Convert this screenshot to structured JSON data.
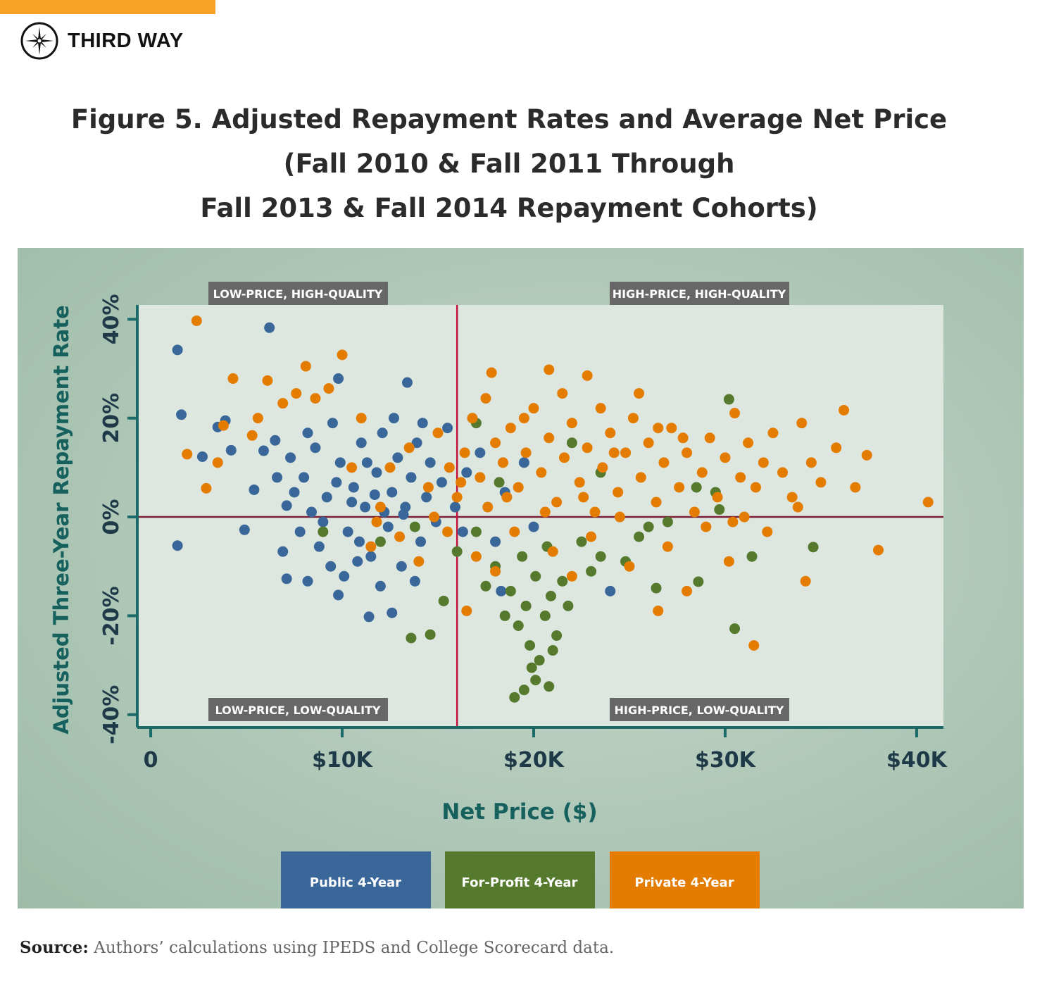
{
  "brand": {
    "name": "THIRD WAY",
    "accent": "#f7a226"
  },
  "title": [
    "Figure 5. Adjusted Repayment Rates and Average Net Price",
    "(Fall 2010 & Fall 2011 Through",
    "Fall 2013 & Fall 2014 Repayment Cohorts)"
  ],
  "source": {
    "label": "Source:",
    "text": " Authors’ calculations using IPEDS and College Scorecard data."
  },
  "chart_data": {
    "type": "scatter",
    "xlabel": "Net Price ($)",
    "ylabel": "Adjusted Three-Year Repayment Rate",
    "xlim": [
      -0.7,
      41.4
    ],
    "ylim": [
      -42.6,
      42.9
    ],
    "x_unit": "$K",
    "y_unit": "%",
    "xticks": [
      {
        "value": 0,
        "label": "0"
      },
      {
        "value": 10,
        "label": "$10K"
      },
      {
        "value": 20,
        "label": "$20K"
      },
      {
        "value": 30,
        "label": "$30K"
      },
      {
        "value": 40,
        "label": "$40K"
      }
    ],
    "yticks": [
      {
        "value": 40,
        "label": "40%"
      },
      {
        "value": 20,
        "label": "20%"
      },
      {
        "value": 0,
        "label": "0%"
      },
      {
        "value": -20,
        "label": "-20%"
      },
      {
        "value": -40,
        "label": "-40%"
      }
    ],
    "reference_lines": {
      "x": 16,
      "y": 0,
      "color": "#c0143c"
    },
    "quadrants": [
      "LOW-PRICE, HIGH-QUALITY",
      "HIGH-PRICE, HIGH-QUALITY",
      "LOW-PRICE, LOW-QUALITY",
      "HIGH-PRICE, LOW-QUALITY"
    ],
    "grid": false,
    "legend_position": "bottom",
    "series": [
      {
        "name": "Public 4-Year",
        "color": "#3a6799",
        "points": [
          [
            1.4,
            33.8
          ],
          [
            6.2,
            38.3
          ],
          [
            1.6,
            20.7
          ],
          [
            1.4,
            -5.8
          ],
          [
            4.9,
            -2.6
          ],
          [
            11.4,
            -20.2
          ],
          [
            12.6,
            -19.4
          ],
          [
            13.4,
            27.2
          ],
          [
            9.8,
            28
          ],
          [
            3.5,
            18.2
          ],
          [
            3.9,
            19.5
          ],
          [
            2.7,
            12.2
          ],
          [
            5.9,
            13.4
          ],
          [
            7.1,
            2.3
          ],
          [
            7.1,
            -12.5
          ],
          [
            8.2,
            -13
          ],
          [
            9.8,
            -15.8
          ],
          [
            4.2,
            13.5
          ],
          [
            5.4,
            5.5
          ],
          [
            6.6,
            8
          ],
          [
            7.3,
            12
          ],
          [
            8,
            8
          ],
          [
            8.6,
            14
          ],
          [
            9.2,
            4
          ],
          [
            9.5,
            19
          ],
          [
            9.9,
            11
          ],
          [
            10.3,
            -3
          ],
          [
            10.6,
            6
          ],
          [
            11,
            15
          ],
          [
            11.2,
            2
          ],
          [
            11.5,
            -8
          ],
          [
            11.8,
            9
          ],
          [
            12.1,
            17
          ],
          [
            12.4,
            -2
          ],
          [
            12.6,
            5
          ],
          [
            12.9,
            12
          ],
          [
            13.1,
            -10
          ],
          [
            13.3,
            2
          ],
          [
            13.6,
            8
          ],
          [
            13.9,
            15
          ],
          [
            14.1,
            -5
          ],
          [
            14.4,
            4
          ],
          [
            14.6,
            11
          ],
          [
            14.9,
            -1
          ],
          [
            15.2,
            7
          ],
          [
            15.5,
            18
          ],
          [
            8.8,
            -6
          ],
          [
            9.4,
            -10
          ],
          [
            10.1,
            -12
          ],
          [
            10.8,
            -9
          ],
          [
            7.8,
            -3
          ],
          [
            8.4,
            1
          ],
          [
            6.9,
            -7
          ],
          [
            12,
            -14
          ],
          [
            13.8,
            -13
          ],
          [
            15.9,
            2
          ],
          [
            16.5,
            9
          ],
          [
            17.2,
            13
          ],
          [
            18.5,
            5
          ],
          [
            19.5,
            11
          ],
          [
            20,
            -2
          ],
          [
            18,
            -5
          ],
          [
            9,
            -1
          ],
          [
            10.5,
            3
          ],
          [
            11.3,
            11
          ],
          [
            12.7,
            20
          ],
          [
            6.5,
            15.5
          ],
          [
            8.2,
            17
          ],
          [
            14.2,
            19
          ],
          [
            16.3,
            -3
          ],
          [
            24,
            -15
          ],
          [
            18.3,
            -15
          ],
          [
            12.2,
            1
          ],
          [
            10.9,
            -5
          ],
          [
            11.7,
            4.5
          ],
          [
            13.2,
            0.5
          ],
          [
            9.7,
            7
          ],
          [
            7.5,
            5
          ]
        ]
      },
      {
        "name": "For-Profit 4-Year",
        "color": "#557a2e",
        "points": [
          [
            30.2,
            23.8
          ],
          [
            19,
            -36.5
          ],
          [
            13.6,
            -24.5
          ],
          [
            14.6,
            -23.8
          ],
          [
            20.8,
            -34.3
          ],
          [
            19.9,
            -30.5
          ],
          [
            30.5,
            -22.6
          ],
          [
            34.6,
            -6.1
          ],
          [
            31.4,
            -8
          ],
          [
            28.6,
            -13.1
          ],
          [
            26.4,
            -14.4
          ],
          [
            15.3,
            -17
          ],
          [
            18,
            -10
          ],
          [
            18.5,
            -20
          ],
          [
            18.8,
            -15
          ],
          [
            19.2,
            -22
          ],
          [
            19.6,
            -18
          ],
          [
            19.8,
            -26
          ],
          [
            20.1,
            -12
          ],
          [
            20.3,
            -29
          ],
          [
            20.6,
            -20
          ],
          [
            20.9,
            -16
          ],
          [
            21.2,
            -24
          ],
          [
            21.5,
            -13
          ],
          [
            21.8,
            -18
          ],
          [
            19.4,
            -8
          ],
          [
            20.7,
            -6
          ],
          [
            17.5,
            -14
          ],
          [
            17,
            -3
          ],
          [
            22.5,
            -5
          ],
          [
            23,
            -11
          ],
          [
            23.5,
            -8
          ],
          [
            24.8,
            -9
          ],
          [
            25.5,
            -4
          ],
          [
            27,
            -1
          ],
          [
            28.5,
            6
          ],
          [
            29.5,
            5
          ],
          [
            20.1,
            -33
          ],
          [
            19.5,
            -35
          ],
          [
            21,
            -27
          ],
          [
            22,
            15
          ],
          [
            17,
            19
          ],
          [
            18.2,
            7
          ],
          [
            23.5,
            9
          ],
          [
            12,
            -5
          ],
          [
            9,
            -3
          ],
          [
            13.8,
            -2
          ],
          [
            16,
            -7
          ],
          [
            26,
            -2
          ],
          [
            29.7,
            1.5
          ]
        ]
      },
      {
        "name": "Private 4-Year",
        "color": "#e37c00",
        "points": [
          [
            2.4,
            39.7
          ],
          [
            1.9,
            12.7
          ],
          [
            2.9,
            5.8
          ],
          [
            3.5,
            11
          ],
          [
            4.3,
            28
          ],
          [
            3.8,
            18.5
          ],
          [
            5.3,
            16.5
          ],
          [
            6.1,
            27.6
          ],
          [
            8.1,
            30.5
          ],
          [
            10,
            32.8
          ],
          [
            17.8,
            29.2
          ],
          [
            20.8,
            29.8
          ],
          [
            22.8,
            28.6
          ],
          [
            40.6,
            3
          ],
          [
            38,
            -6.7
          ],
          [
            31.5,
            -26
          ],
          [
            34.2,
            -13
          ],
          [
            36.2,
            21.6
          ],
          [
            36.8,
            6
          ],
          [
            37.4,
            12.5
          ],
          [
            30.5,
            21
          ],
          [
            28,
            -15
          ],
          [
            5.6,
            20
          ],
          [
            6.9,
            23
          ],
          [
            7.6,
            25
          ],
          [
            8.6,
            24
          ],
          [
            9.3,
            26
          ],
          [
            11,
            20
          ],
          [
            12.5,
            10
          ],
          [
            13.5,
            14
          ],
          [
            14.5,
            6
          ],
          [
            15,
            17
          ],
          [
            15.6,
            10
          ],
          [
            16,
            4
          ],
          [
            16.4,
            13
          ],
          [
            16.8,
            20
          ],
          [
            17.2,
            8
          ],
          [
            17.6,
            2
          ],
          [
            18,
            15
          ],
          [
            18.4,
            11
          ],
          [
            18.8,
            18
          ],
          [
            19.2,
            6
          ],
          [
            19.6,
            13
          ],
          [
            20,
            22
          ],
          [
            20.4,
            9
          ],
          [
            20.8,
            16
          ],
          [
            21.2,
            3
          ],
          [
            21.6,
            12
          ],
          [
            22,
            19
          ],
          [
            22.4,
            7
          ],
          [
            22.8,
            14
          ],
          [
            23.2,
            1
          ],
          [
            23.6,
            10
          ],
          [
            24,
            17
          ],
          [
            24.4,
            5
          ],
          [
            24.8,
            13
          ],
          [
            25.2,
            20
          ],
          [
            25.6,
            8
          ],
          [
            26,
            15
          ],
          [
            26.4,
            3
          ],
          [
            26.8,
            11
          ],
          [
            27.2,
            18
          ],
          [
            27.6,
            6
          ],
          [
            28,
            13
          ],
          [
            28.4,
            1
          ],
          [
            28.8,
            9
          ],
          [
            29.2,
            16
          ],
          [
            29.6,
            4
          ],
          [
            30,
            12
          ],
          [
            30.4,
            -1
          ],
          [
            30.8,
            8
          ],
          [
            31.2,
            15
          ],
          [
            31.6,
            6
          ],
          [
            32,
            11
          ],
          [
            32.5,
            17
          ],
          [
            33,
            9
          ],
          [
            33.5,
            4
          ],
          [
            34,
            19
          ],
          [
            34.5,
            11
          ],
          [
            35,
            7
          ],
          [
            35.8,
            14
          ],
          [
            19,
            -3
          ],
          [
            17,
            -8
          ],
          [
            21,
            -7
          ],
          [
            23,
            -4
          ],
          [
            25,
            -10
          ],
          [
            27,
            -6
          ],
          [
            29,
            -2
          ],
          [
            31,
            0
          ],
          [
            13,
            -4
          ],
          [
            14,
            -9
          ],
          [
            11.5,
            -6
          ],
          [
            12,
            2
          ],
          [
            18,
            -11
          ],
          [
            26.5,
            -19
          ],
          [
            16.5,
            -19
          ],
          [
            22,
            -12
          ],
          [
            24.5,
            0
          ],
          [
            15.5,
            -3
          ],
          [
            17.5,
            24
          ],
          [
            19.5,
            20
          ],
          [
            21.5,
            25
          ],
          [
            23.5,
            22
          ],
          [
            25.5,
            25
          ],
          [
            26.5,
            18
          ],
          [
            10.5,
            10
          ],
          [
            11.8,
            -1
          ],
          [
            14.8,
            0
          ],
          [
            16.2,
            7
          ],
          [
            18.6,
            4
          ],
          [
            20.6,
            1
          ],
          [
            22.6,
            4
          ],
          [
            24.2,
            13
          ],
          [
            27.8,
            16
          ],
          [
            32.2,
            -3
          ],
          [
            33.8,
            2
          ],
          [
            30.2,
            -9
          ]
        ]
      }
    ]
  }
}
